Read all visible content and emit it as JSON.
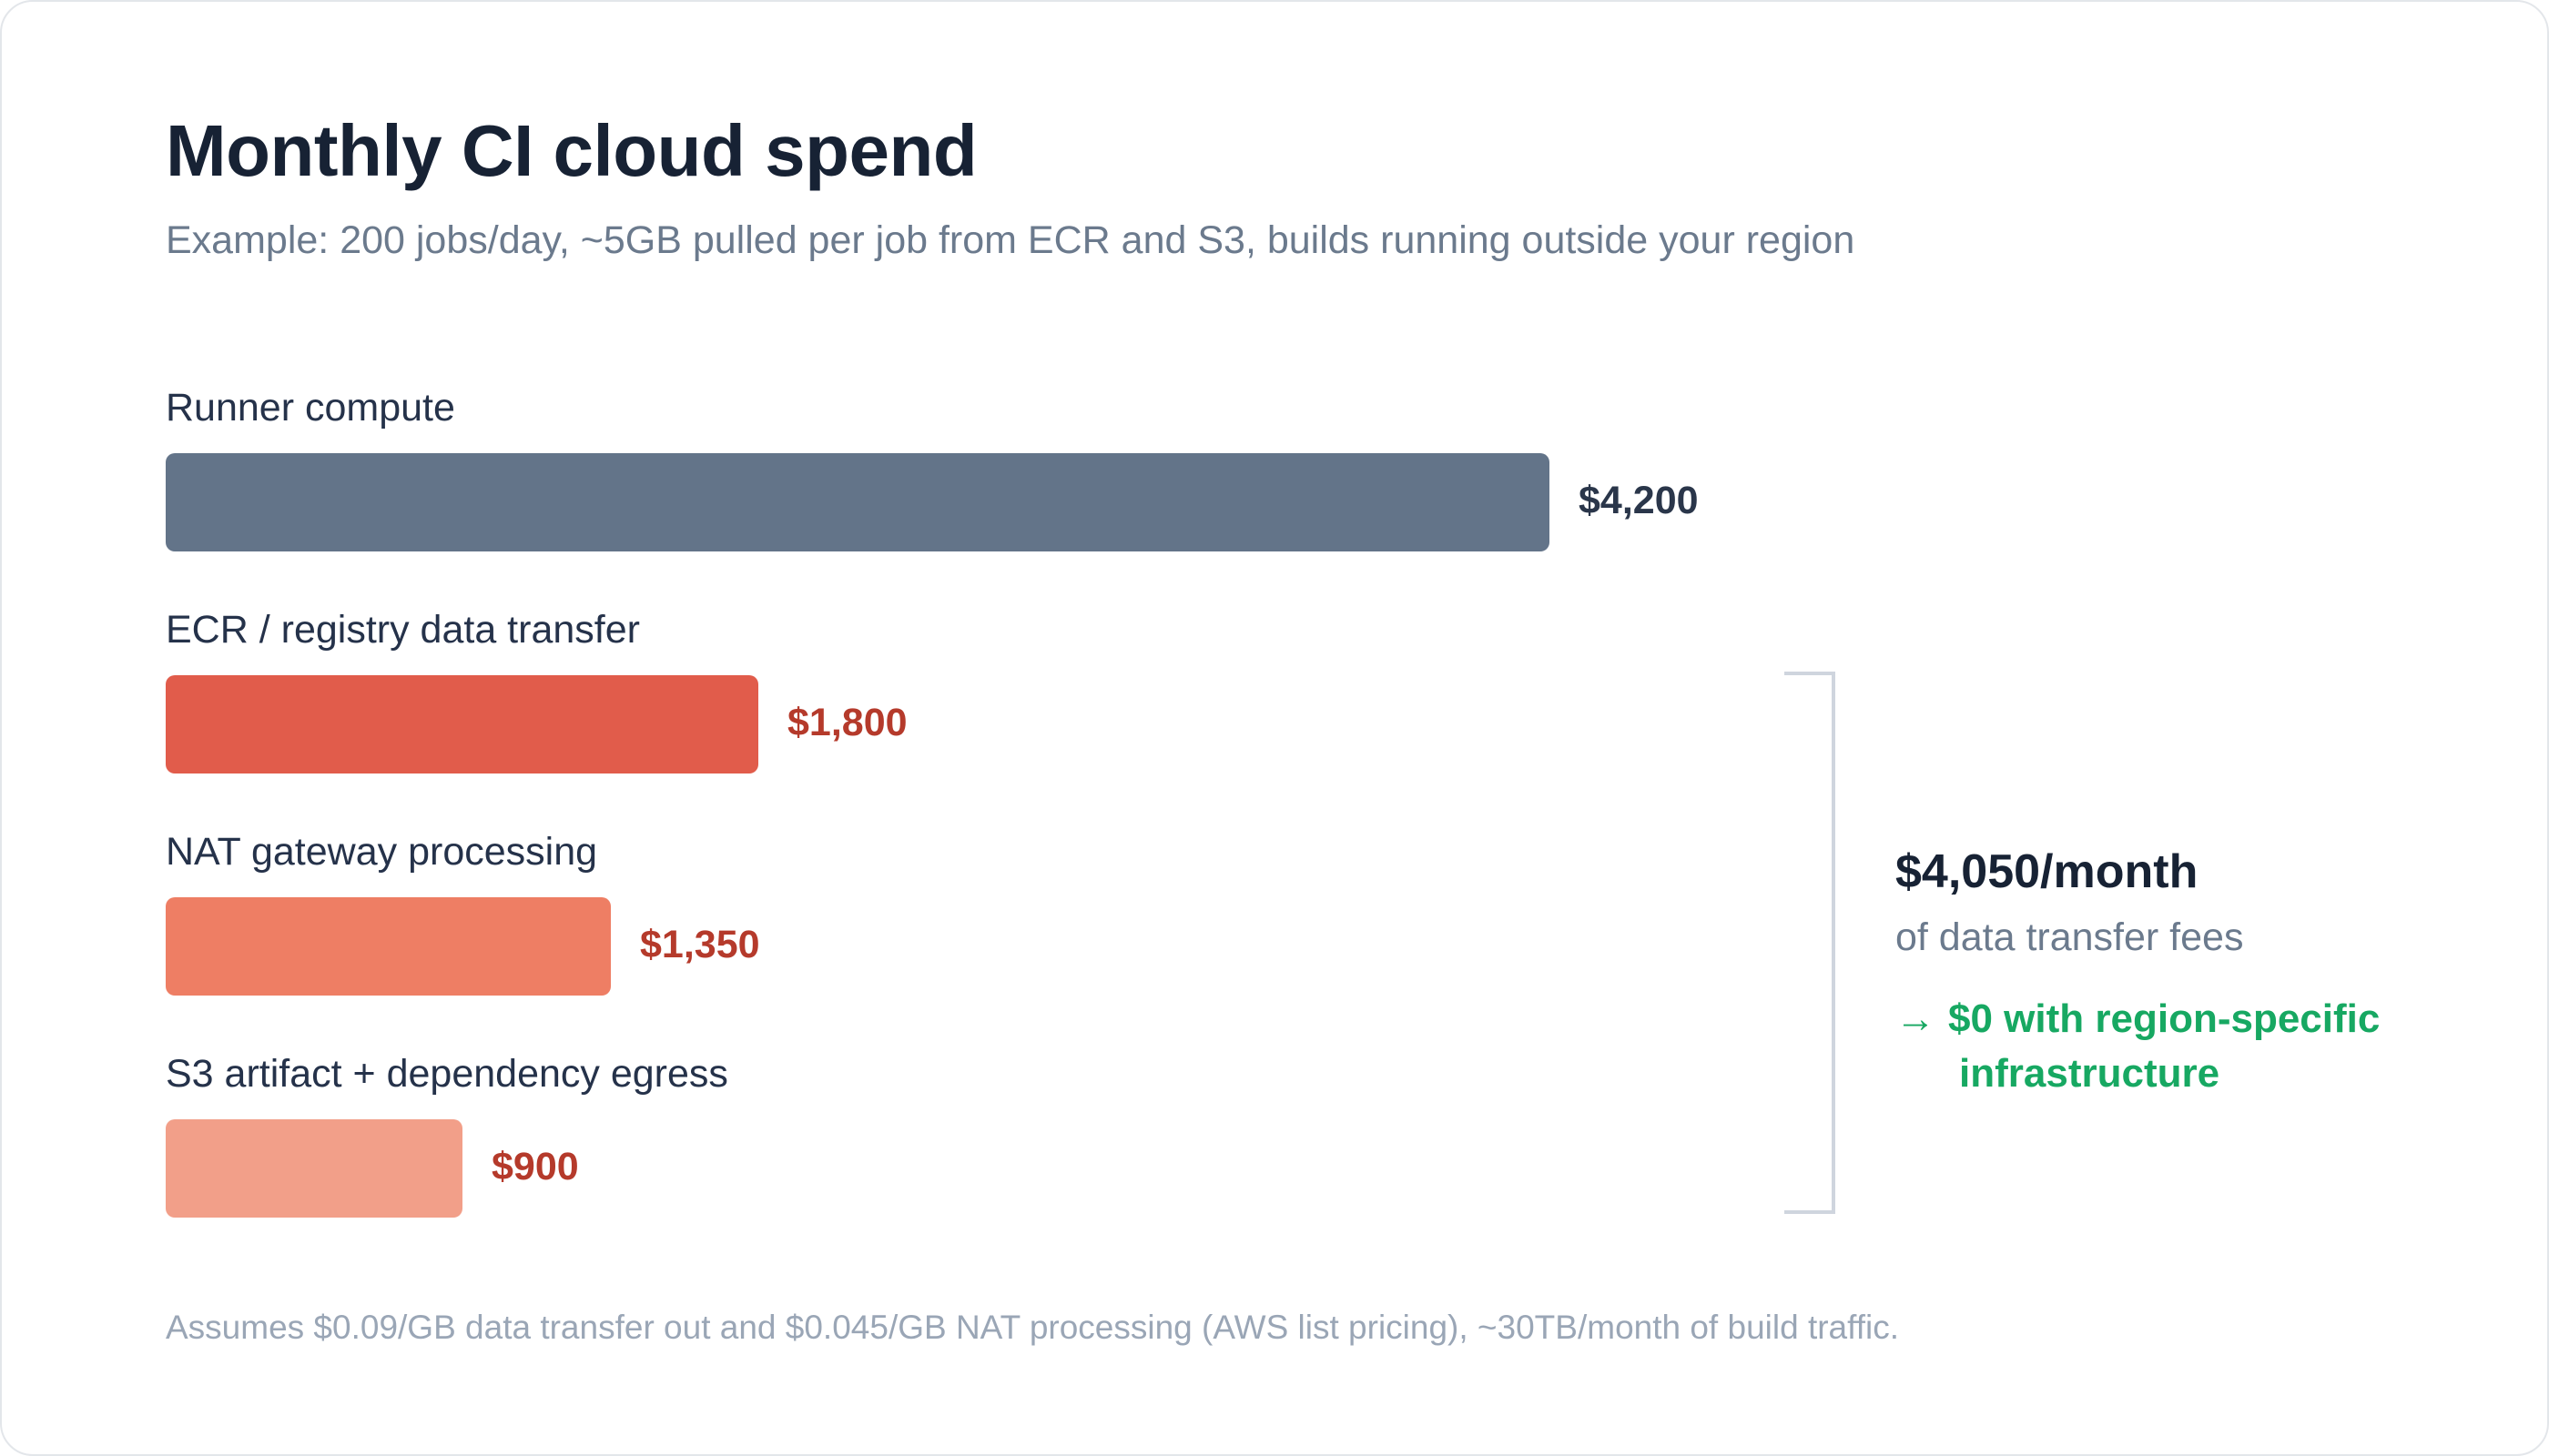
{
  "header": {
    "title": "Monthly CI cloud spend",
    "subtitle": "Example: 200 jobs/day, ~5GB pulled per job from ECR and S3, builds running outside your region"
  },
  "chart_data": {
    "type": "bar",
    "orientation": "horizontal",
    "title": "Monthly CI cloud spend",
    "subtitle": "Example: 200 jobs/day, ~5GB pulled per job from ECR and S3, builds running outside your region",
    "categories": [
      "Runner compute",
      "ECR / registry data transfer",
      "NAT gateway processing",
      "S3 artifact + dependency egress"
    ],
    "values": [
      4200,
      1800,
      1350,
      900
    ],
    "value_labels": [
      "$4,200",
      "$1,800",
      "$1,350",
      "$900"
    ],
    "bar_colors": [
      "#637489",
      "#e15c4b",
      "#ee7e64",
      "#f29f89"
    ],
    "value_label_colors": [
      "#2a364a",
      "#b53a2b",
      "#b53a2b",
      "#b53a2b"
    ],
    "xlim": [
      0,
      4200
    ],
    "grid": false,
    "legend": "none",
    "axes_visible": false
  },
  "summary": {
    "value": "$4,050/month",
    "text": "of data transfer fees",
    "arrow": "→",
    "savings_line1": "$0 with region-specific",
    "savings_line2": "infrastructure"
  },
  "footnote": "Assumes $0.09/GB data transfer out and $0.045/GB NAT processing (AWS list pricing), ~30TB/month of build traffic.",
  "colors": {
    "title": "#172234",
    "muted": "#6b7a8d",
    "accent_green": "#17a862",
    "bracket": "#cfd5de"
  }
}
